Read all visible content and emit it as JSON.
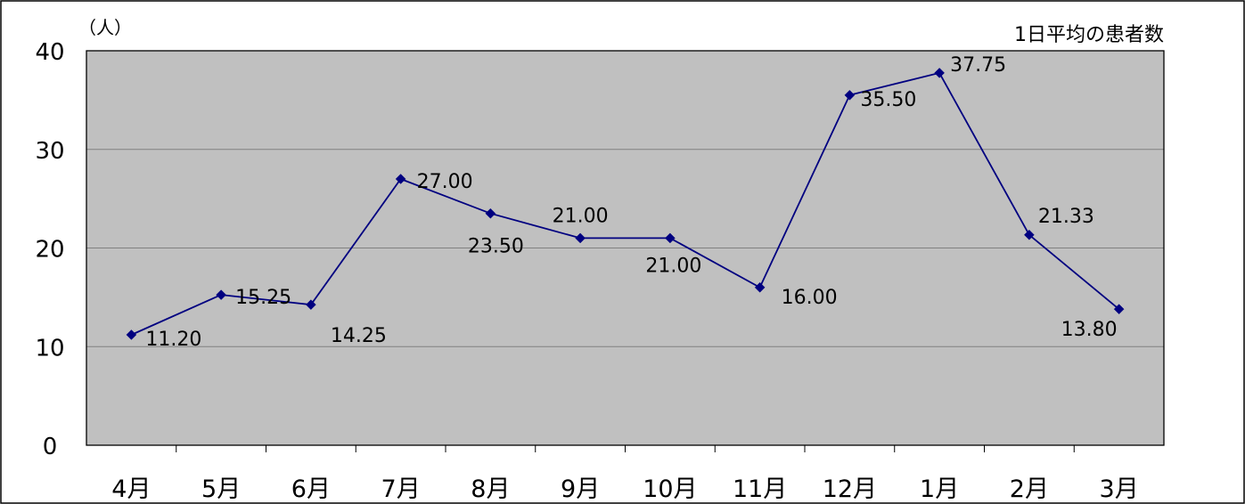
{
  "chart_data": {
    "type": "line",
    "title": "1日平均の患者数",
    "ylabel": "（人）",
    "categories": [
      "4月",
      "5月",
      "6月",
      "7月",
      "8月",
      "9月",
      "10月",
      "11月",
      "12月",
      "1月",
      "2月",
      "3月"
    ],
    "series": [
      {
        "values": [
          11.2,
          15.25,
          14.25,
          27.0,
          23.5,
          21.0,
          21.0,
          16.0,
          35.5,
          37.75,
          21.33,
          13.8
        ],
        "labels": [
          "11.20",
          "15.25",
          "14.25",
          "27.00",
          "23.50",
          "21.00",
          "21.00",
          "16.00",
          "35.50",
          "37.75",
          "21.33",
          "13.80"
        ]
      }
    ],
    "ylim": [
      0,
      40
    ],
    "yticks": [
      "0",
      "10",
      "20",
      "30",
      "40"
    ],
    "grid": true,
    "colors": {
      "plot_background": "#c0c0c0",
      "line": "#000080",
      "marker": "#000080",
      "grid": "#808080",
      "frame": "#000000"
    }
  }
}
